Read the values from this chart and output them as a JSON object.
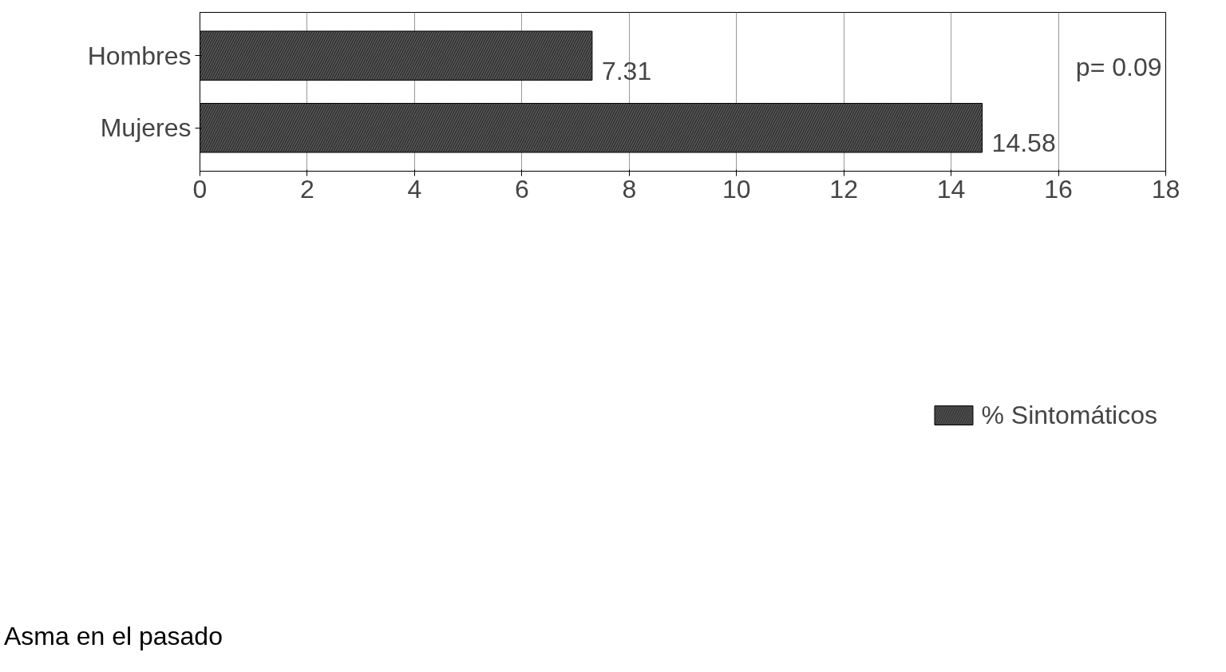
{
  "chart_data": {
    "type": "bar",
    "orientation": "horizontal",
    "categories": [
      "Hombres",
      "Mujeres"
    ],
    "series": [
      {
        "name": "% Sintomáticos",
        "color": "#555555",
        "values": [
          7.31,
          14.58
        ]
      }
    ],
    "xlim": [
      0,
      18
    ],
    "xticks": [
      0,
      2,
      4,
      6,
      8,
      10,
      12,
      14,
      16,
      18
    ],
    "grid": "x",
    "legend": "bottom",
    "data_labels": true,
    "annotations": [
      "p= 0.09",
      "Asma en el pasado"
    ]
  }
}
